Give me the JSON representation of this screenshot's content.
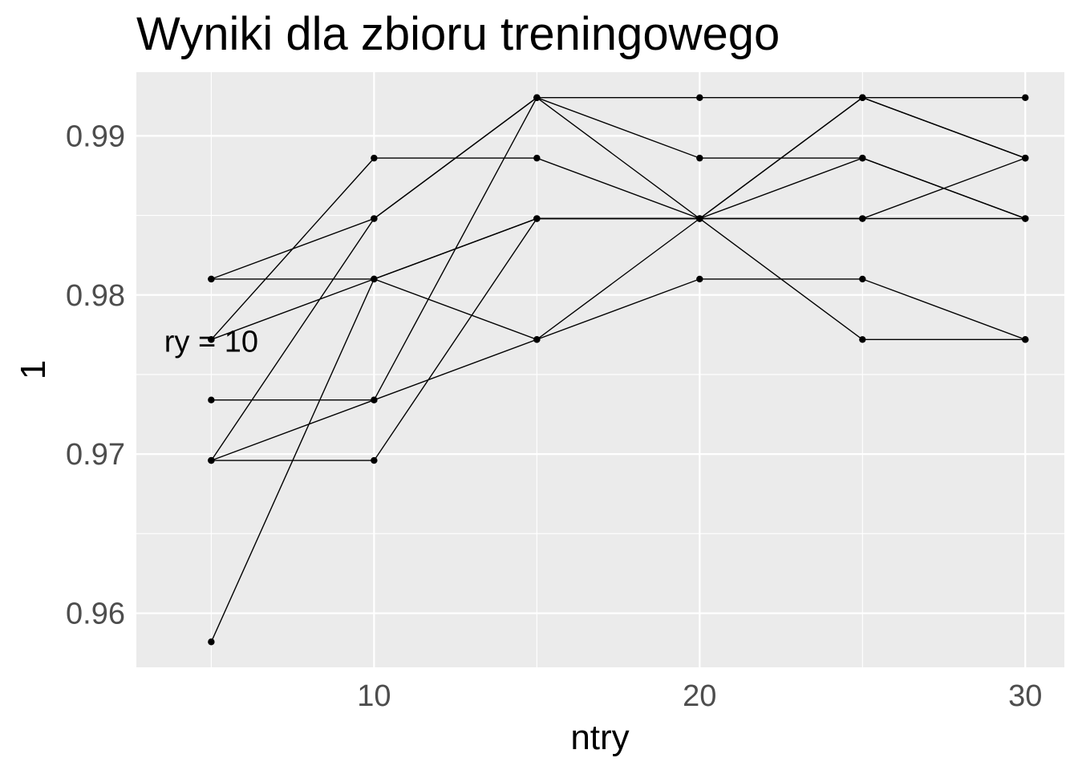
{
  "chart_data": {
    "type": "line",
    "title": "Wyniki dla zbioru treningowego",
    "xlabel": "ntry",
    "ylabel": "1",
    "xlim": [
      2.7,
      31.2
    ],
    "ylim": [
      0.9566,
      0.994
    ],
    "x_ticks": [
      10,
      20,
      30
    ],
    "y_ticks": [
      0.96,
      0.97,
      0.98,
      0.99
    ],
    "x_tick_labels": [
      "10",
      "20",
      "30"
    ],
    "y_tick_labels": [
      "0.96",
      "0.97",
      "0.98",
      "0.99"
    ],
    "grid": true,
    "legend": "none",
    "annotation": {
      "text": "ry = 10",
      "x": 5,
      "y": 0.9772
    },
    "x": [
      5,
      10,
      15,
      20,
      25,
      30
    ],
    "series": [
      {
        "values": [
          0.981,
          0.981,
          0.9848,
          0.9848,
          0.9848,
          0.9886
        ]
      },
      {
        "values": [
          0.981,
          0.9848,
          0.9924,
          0.9848,
          0.9924,
          0.9886
        ]
      },
      {
        "values": [
          0.9772,
          0.9886,
          0.9886,
          0.9848,
          0.9886,
          0.9848
        ]
      },
      {
        "values": [
          0.9772,
          0.981,
          0.9848,
          0.9848,
          0.9848,
          0.9848
        ]
      },
      {
        "values": [
          0.9734,
          0.9734,
          0.9924,
          0.9924,
          0.9924,
          0.9924
        ]
      },
      {
        "values": [
          0.9696,
          0.9734,
          0.9772,
          0.9848,
          0.9924,
          0.9886
        ]
      },
      {
        "values": [
          0.9696,
          0.9848,
          0.9924,
          0.9886,
          0.9886,
          0.9848
        ]
      },
      {
        "values": [
          0.9696,
          0.9696,
          0.9848,
          0.9848,
          0.9772,
          0.9772
        ]
      },
      {
        "values": [
          0.9582,
          0.981,
          0.9772,
          0.981,
          0.981,
          0.9772
        ]
      }
    ]
  }
}
